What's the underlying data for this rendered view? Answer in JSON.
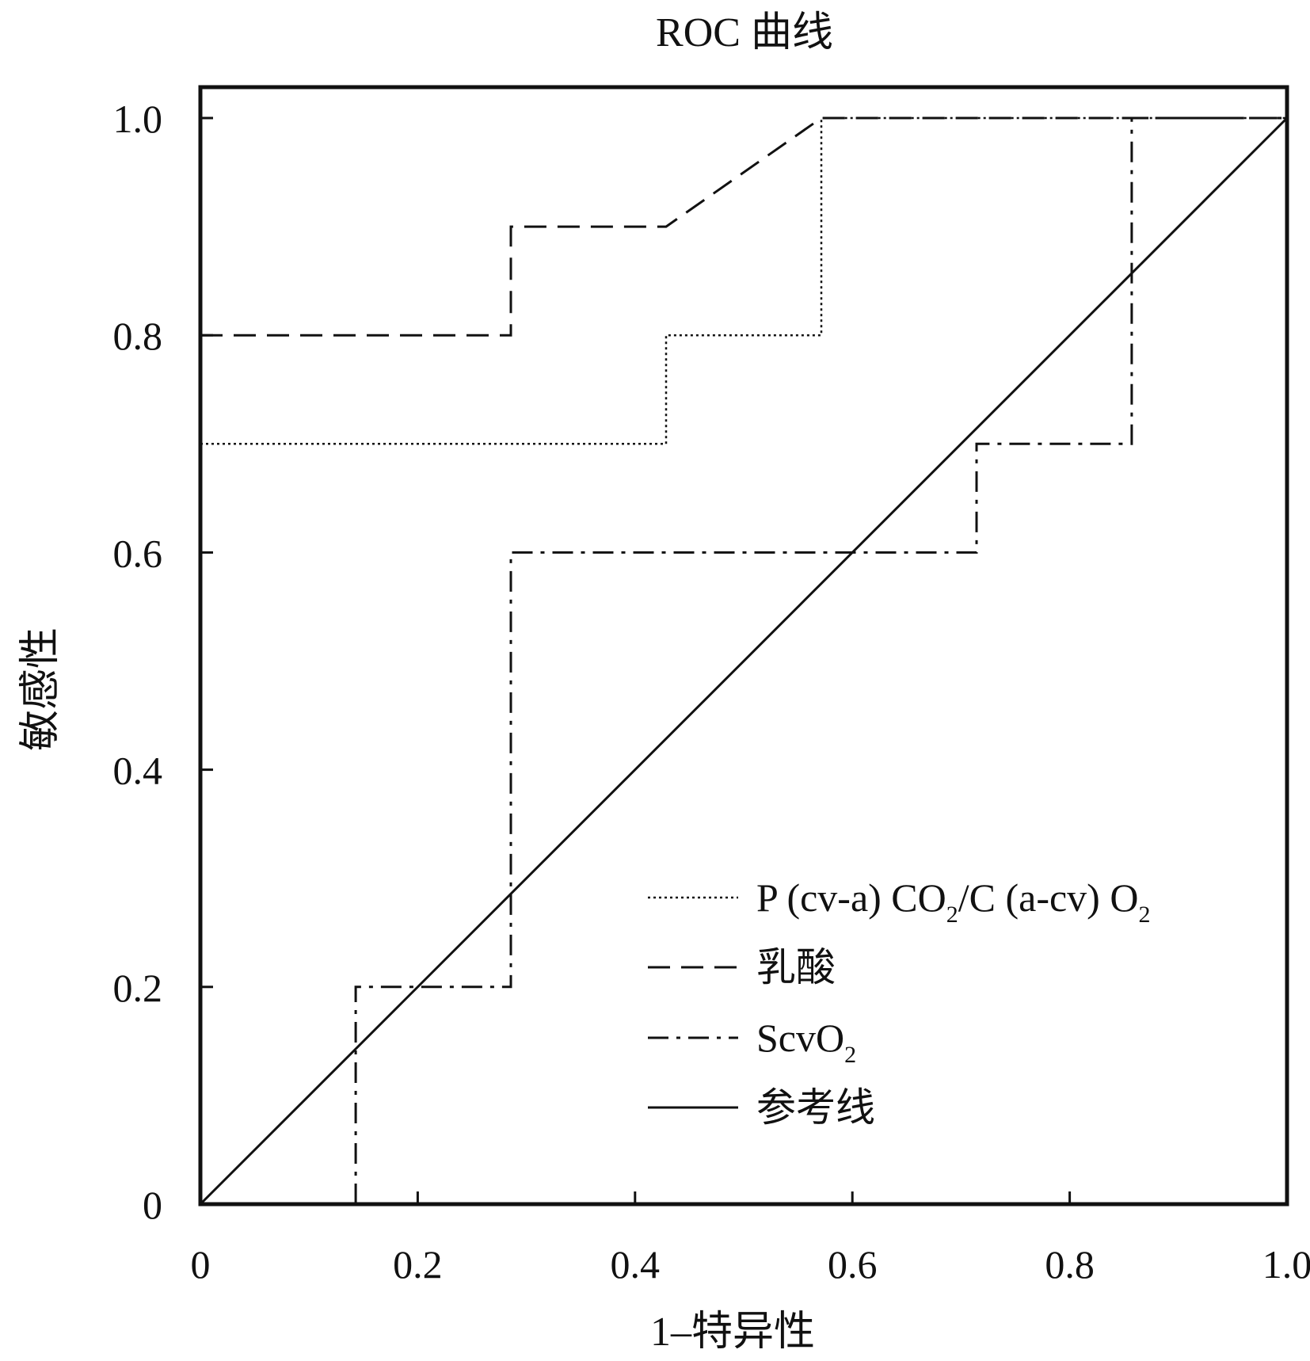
{
  "chart_data": {
    "type": "line",
    "title": "ROC 曲线",
    "xlabel": "1–特异性",
    "ylabel": "敏感性",
    "xlim": [
      0,
      1
    ],
    "ylim": [
      0,
      1
    ],
    "x_ticks": [
      "0",
      "0.2",
      "0.4",
      "0.6",
      "0.8",
      "1.0"
    ],
    "y_ticks": [
      "0",
      "0.2",
      "0.4",
      "0.6",
      "0.8",
      "1.0"
    ],
    "grid": false,
    "legend_position": "bottom-right",
    "series": [
      {
        "name": "P (cv-a) CO2/C (a-cv) O2",
        "legend_parts": [
          {
            "text": "P (cv-a) CO"
          },
          {
            "text": "2",
            "sub": true
          },
          {
            "text": "/C (a-cv) O"
          },
          {
            "text": "2",
            "sub": true
          }
        ],
        "style": "dotted",
        "points": [
          [
            0,
            0.7
          ],
          [
            0.4286,
            0.7
          ],
          [
            0.4286,
            0.8
          ],
          [
            0.5714,
            0.8
          ],
          [
            0.5714,
            1.0
          ],
          [
            1.0,
            1.0
          ]
        ]
      },
      {
        "name": "乳酸",
        "legend_parts": [
          {
            "text": "乳酸"
          }
        ],
        "style": "dashed",
        "points": [
          [
            0,
            0.8
          ],
          [
            0.2857,
            0.8
          ],
          [
            0.2857,
            0.9
          ],
          [
            0.4286,
            0.9
          ],
          [
            0.5714,
            1.0
          ],
          [
            1.0,
            1.0
          ]
        ]
      },
      {
        "name": "ScvO2",
        "legend_parts": [
          {
            "text": "ScvO"
          },
          {
            "text": "2",
            "sub": true
          }
        ],
        "style": "dashdot",
        "points": [
          [
            0.1429,
            0
          ],
          [
            0.1429,
            0.2
          ],
          [
            0.2857,
            0.2
          ],
          [
            0.2857,
            0.6
          ],
          [
            0.7143,
            0.6
          ],
          [
            0.7143,
            0.7
          ],
          [
            0.8571,
            0.7
          ],
          [
            0.8571,
            1.0
          ],
          [
            1.0,
            1.0
          ]
        ]
      },
      {
        "name": "参考线",
        "legend_parts": [
          {
            "text": "参考线"
          }
        ],
        "style": "solid",
        "points": [
          [
            0,
            0
          ],
          [
            1,
            1
          ]
        ]
      }
    ]
  }
}
